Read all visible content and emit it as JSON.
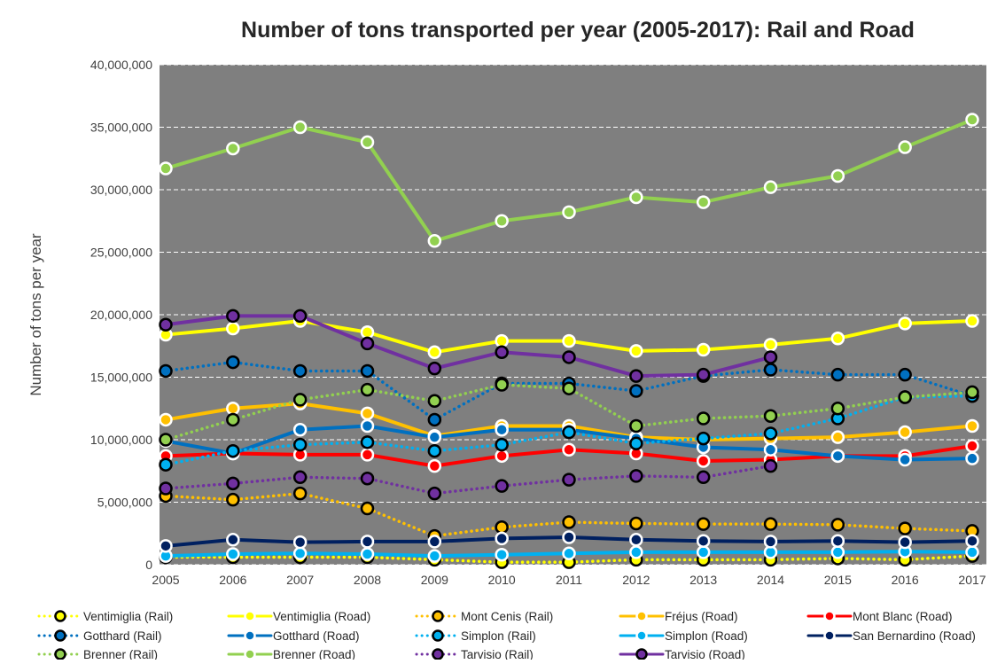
{
  "chart_data": {
    "type": "line",
    "title": "Number of tons transported per year (2005-2017): Rail and Road",
    "y_label": "Number of tons per year",
    "categories": [
      "2005",
      "2006",
      "2007",
      "2008",
      "2009",
      "2010",
      "2011",
      "2012",
      "2013",
      "2014",
      "2015",
      "2016",
      "2017"
    ],
    "ylim": [
      0,
      40000000
    ],
    "yticks": [
      {
        "value": 0,
        "label": "0"
      },
      {
        "value": 5000000,
        "label": "5,000,000"
      },
      {
        "value": 10000000,
        "label": "10,000,000"
      },
      {
        "value": 15000000,
        "label": "15,000,000"
      },
      {
        "value": 20000000,
        "label": "20,000,000"
      },
      {
        "value": 25000000,
        "label": "25,000,000"
      },
      {
        "value": 30000000,
        "label": "30,000,000"
      },
      {
        "value": 35000000,
        "label": "35,000,000"
      },
      {
        "value": 40000000,
        "label": "40,000,000"
      }
    ],
    "grid": true,
    "plot_background": "#7f7f7f",
    "legend": "bottom",
    "series": [
      {
        "name": "Ventimiglia (Rail)",
        "color": "#ffff00",
        "style": "dotted",
        "marker_edge": "#000000",
        "values": [
          600000,
          600000,
          600000,
          600000,
          400000,
          200000,
          200000,
          400000,
          400000,
          400000,
          500000,
          400000,
          700000
        ]
      },
      {
        "name": "Ventimiglia (Road)",
        "color": "#ffff00",
        "style": "solid",
        "marker_edge": "#ffffff",
        "values": [
          18400000,
          18900000,
          19500000,
          18600000,
          17000000,
          17900000,
          17900000,
          17100000,
          17200000,
          17600000,
          18100000,
          19300000,
          19500000
        ]
      },
      {
        "name": "Mont Cenis (Rail)",
        "color": "#ffc000",
        "style": "dotted",
        "marker_edge": "#000000",
        "values": [
          5500000,
          5200000,
          5700000,
          4500000,
          2300000,
          3000000,
          3400000,
          3300000,
          3250000,
          3250000,
          3200000,
          2900000,
          2700000
        ]
      },
      {
        "name": "Fréjus (Road)",
        "color": "#ffc000",
        "style": "solid",
        "marker_edge": "#ffffff",
        "values": [
          11600000,
          12500000,
          12900000,
          12100000,
          10300000,
          11100000,
          11100000,
          10200000,
          10000000,
          10100000,
          10200000,
          10600000,
          11100000
        ]
      },
      {
        "name": "Mont Blanc (Road)",
        "color": "#ff0000",
        "style": "solid",
        "marker_edge": "#ffffff",
        "values": [
          8700000,
          8900000,
          8800000,
          8800000,
          7900000,
          8700000,
          9200000,
          8900000,
          8300000,
          8400000,
          8700000,
          8700000,
          9500000
        ]
      },
      {
        "name": "Gotthard (Rail)",
        "color": "#0070c0",
        "style": "dotted",
        "marker_edge": "#000000",
        "values": [
          15500000,
          16200000,
          15500000,
          15500000,
          11600000,
          14500000,
          14500000,
          13900000,
          15100000,
          15600000,
          15200000,
          15200000,
          13500000
        ]
      },
      {
        "name": "Gotthard (Road)",
        "color": "#0070c0",
        "style": "solid",
        "marker_edge": "#ffffff",
        "values": [
          9900000,
          8900000,
          10800000,
          11100000,
          10200000,
          10800000,
          10800000,
          10100000,
          9400000,
          9200000,
          8700000,
          8400000,
          8500000
        ]
      },
      {
        "name": "Simplon (Rail)",
        "color": "#00b0f0",
        "style": "dotted",
        "marker_edge": "#000000",
        "values": [
          8000000,
          9100000,
          9600000,
          9800000,
          9100000,
          9600000,
          10600000,
          9700000,
          10100000,
          10500000,
          11700000,
          13400000,
          13500000
        ]
      },
      {
        "name": "Simplon (Road)",
        "color": "#00b0f0",
        "style": "solid",
        "marker_edge": "#ffffff",
        "values": [
          700000,
          850000,
          900000,
          850000,
          700000,
          800000,
          900000,
          1000000,
          1000000,
          1000000,
          1000000,
          1050000,
          1000000
        ]
      },
      {
        "name": "San Bernardino (Road)",
        "color": "#002060",
        "style": "solid",
        "marker_edge": "#ffffff",
        "values": [
          1500000,
          2000000,
          1800000,
          1850000,
          1850000,
          2100000,
          2200000,
          2000000,
          1900000,
          1850000,
          1900000,
          1800000,
          1900000
        ]
      },
      {
        "name": "Brenner (Rail)",
        "color": "#92d050",
        "style": "dotted",
        "marker_edge": "#000000",
        "values": [
          10000000,
          11600000,
          13200000,
          14000000,
          13100000,
          14400000,
          14100000,
          11100000,
          11700000,
          11900000,
          12500000,
          13400000,
          13800000
        ]
      },
      {
        "name": "Brenner (Road)",
        "color": "#92d050",
        "style": "solid",
        "marker_edge": "#ffffff",
        "values": [
          31700000,
          33300000,
          35000000,
          33800000,
          25900000,
          27500000,
          28200000,
          29400000,
          29000000,
          30200000,
          31100000,
          33400000,
          35600000
        ]
      },
      {
        "name": "Tarvisio (Rail)",
        "color": "#7030a0",
        "style": "dotted",
        "marker_edge": "#000000",
        "values": [
          6100000,
          6500000,
          7000000,
          6900000,
          5700000,
          6300000,
          6800000,
          7100000,
          7000000,
          7900000,
          null,
          null,
          null
        ]
      },
      {
        "name": "Tarvisio (Road)",
        "color": "#7030a0",
        "style": "solid",
        "marker_edge": "#000000",
        "values": [
          19200000,
          19900000,
          19900000,
          17700000,
          15700000,
          17000000,
          16600000,
          15100000,
          15200000,
          16600000,
          null,
          null,
          null
        ]
      }
    ]
  }
}
